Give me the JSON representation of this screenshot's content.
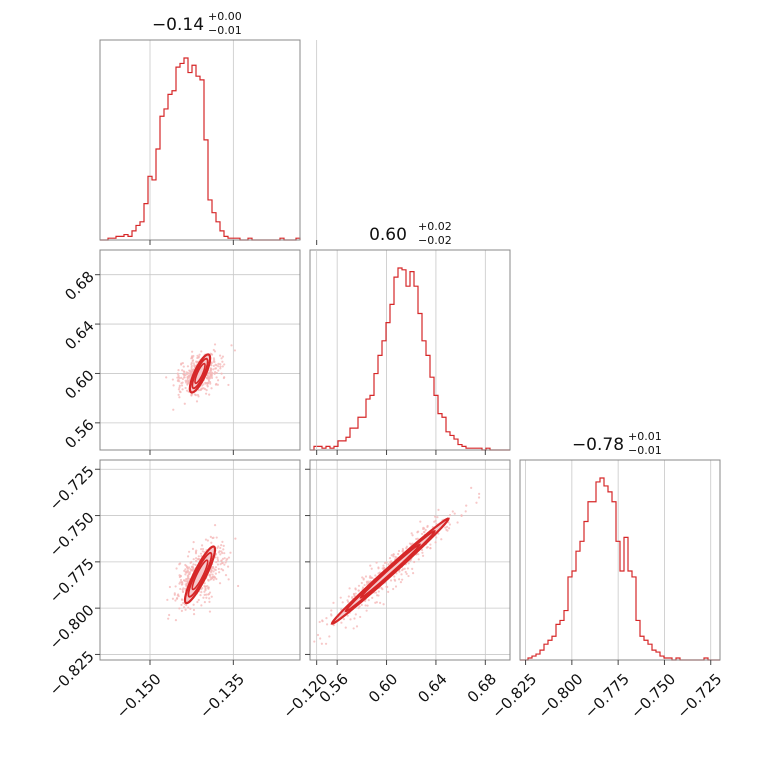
{
  "chart_data": {
    "type": "corner",
    "color": "#d62728",
    "scatter_color": "#f4b6b6",
    "fill_color": "#f6c9cc",
    "grid": true,
    "parameters": [
      {
        "range": [
          -0.159,
          -0.123
        ],
        "ticks": [
          -0.15,
          -0.135,
          -0.12
        ],
        "tick_labels": [
          "−0.150",
          "−0.135",
          "−0.120"
        ],
        "title": {
          "value": "−0.14",
          "plus": "+0.00",
          "minus": "−0.01"
        }
      },
      {
        "range": [
          0.538,
          0.7
        ],
        "ticks": [
          0.56,
          0.6,
          0.64,
          0.68
        ],
        "tick_labels": [
          "0.56",
          "0.60",
          "0.64",
          "0.68"
        ],
        "title": {
          "value": "0.60",
          "plus": "+0.02",
          "minus": "−0.02"
        }
      },
      {
        "range": [
          -0.828,
          -0.72
        ],
        "ticks": [
          -0.825,
          -0.8,
          -0.775,
          -0.75,
          -0.725
        ],
        "tick_labels": [
          "−0.825",
          "−0.800",
          "−0.775",
          "−0.750",
          "−0.725"
        ],
        "title": {
          "value": "−0.78",
          "plus": "+0.01",
          "minus": "−0.01"
        }
      }
    ],
    "histograms": [
      {
        "param": 0,
        "edges_range": [
          -0.159,
          -0.123
        ],
        "counts": [
          0,
          0,
          1,
          1,
          2,
          2,
          3,
          2,
          5,
          8,
          10,
          20,
          35,
          33,
          50,
          68,
          72,
          80,
          82,
          95,
          97,
          100,
          92,
          96,
          90,
          88,
          55,
          22,
          15,
          10,
          5,
          2,
          1,
          1,
          1,
          0,
          0,
          1,
          0,
          0,
          0,
          0,
          0,
          0,
          0,
          1,
          0,
          0,
          0,
          1
        ]
      },
      {
        "param": 1,
        "edges_range": [
          0.538,
          0.7
        ],
        "counts": [
          0,
          2,
          2,
          1,
          2,
          1,
          2,
          5,
          5,
          7,
          12,
          12,
          18,
          18,
          28,
          30,
          42,
          52,
          60,
          70,
          80,
          95,
          100,
          99,
          90,
          98,
          90,
          75,
          60,
          52,
          40,
          30,
          20,
          18,
          10,
          8,
          6,
          3,
          2,
          1,
          1,
          1,
          1,
          0,
          1,
          0,
          0,
          0,
          0,
          0
        ]
      },
      {
        "param": 2,
        "edges_range": [
          -0.828,
          -0.72
        ],
        "counts": [
          0,
          0,
          1,
          2,
          3,
          5,
          8,
          10,
          12,
          18,
          20,
          25,
          42,
          45,
          55,
          60,
          70,
          80,
          80,
          90,
          92,
          88,
          85,
          80,
          60,
          45,
          62,
          45,
          42,
          20,
          12,
          10,
          8,
          5,
          4,
          2,
          1,
          1,
          0,
          1,
          0,
          0,
          0,
          0,
          0,
          0,
          1,
          0,
          0,
          0
        ]
      }
    ],
    "pairs": [
      {
        "x_param": 0,
        "y_param": 1,
        "center": [
          -0.141,
          0.6
        ],
        "axis_direction": [
          1.0,
          10.6
        ],
        "levels": [
          {
            "along": 0.0155,
            "across": 0.0011,
            "width": 2.2
          },
          {
            "along": 0.012,
            "across": 0.0008,
            "width": 1.8
          },
          {
            "along": 0.008,
            "across": 0.0005,
            "width": 1.6
          }
        ]
      },
      {
        "x_param": 0,
        "y_param": 2,
        "center": [
          -0.141,
          -0.782
        ],
        "axis_direction": [
          1.0,
          6.3
        ],
        "levels": [
          {
            "along": 0.0155,
            "across": 0.0012,
            "width": 2.2
          },
          {
            "along": 0.012,
            "across": 0.0009,
            "width": 1.8
          },
          {
            "along": 0.008,
            "across": 0.0006,
            "width": 1.6
          }
        ]
      },
      {
        "x_param": 1,
        "y_param": 2,
        "center": [
          0.603,
          -0.78
        ],
        "axis_direction": [
          1.0,
          0.6
        ],
        "levels": [
          {
            "along": 0.055,
            "across": 0.0025,
            "width": 2.2
          },
          {
            "along": 0.042,
            "across": 0.0018,
            "width": 1.8
          },
          {
            "along": 0.028,
            "across": 0.0012,
            "width": 1.6
          }
        ]
      }
    ]
  }
}
